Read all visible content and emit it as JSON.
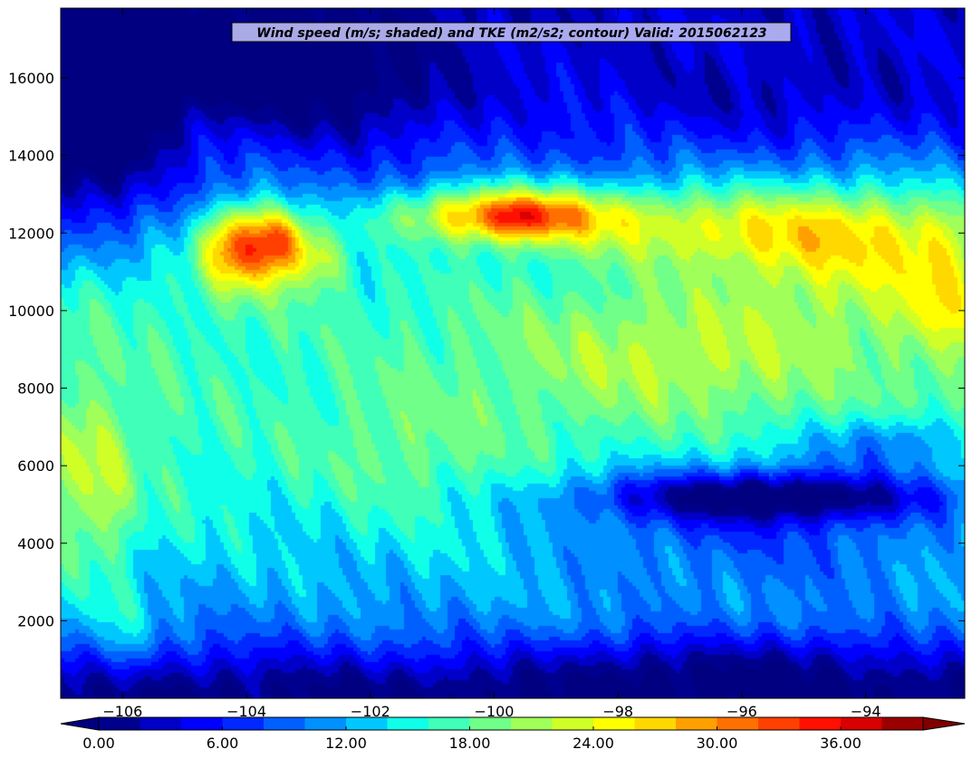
{
  "chart_data": {
    "type": "heatmap",
    "title": "Wind speed (m/s; shaded) and TKE (m2/s2; contour) Valid: 2015062123",
    "xlabel": "",
    "ylabel": "",
    "xlim": [
      -107.0,
      -92.4
    ],
    "ylim": [
      0,
      17800
    ],
    "x_ticks": [
      -106,
      -104,
      -102,
      -100,
      -98,
      -96,
      -94
    ],
    "x_tick_labels": [
      "−106",
      "−104",
      "−102",
      "−100",
      "−98",
      "−96",
      "−94"
    ],
    "y_ticks": [
      2000,
      4000,
      6000,
      8000,
      10000,
      12000,
      14000,
      16000
    ],
    "y_tick_labels": [
      "2000",
      "4000",
      "6000",
      "8000",
      "10000",
      "12000",
      "14000",
      "16000"
    ],
    "colorbar": {
      "min": 0,
      "max": 40,
      "step": 2,
      "extend": "both",
      "tick_values": [
        0,
        6,
        12,
        18,
        24,
        30,
        36
      ],
      "tick_labels": [
        "0.00",
        "6.00",
        "12.00",
        "18.00",
        "24.00",
        "30.00",
        "36.00"
      ],
      "colors": [
        "#00008f",
        "#0000c8",
        "#0000ff",
        "#0028ff",
        "#0060ff",
        "#0090ff",
        "#00c8ff",
        "#10ffe8",
        "#40ffb8",
        "#70ff88",
        "#a0ff58",
        "#d0ff28",
        "#ffff00",
        "#ffd800",
        "#ffa000",
        "#ff7000",
        "#ff4000",
        "#ff1000",
        "#d80000",
        "#9a0000"
      ],
      "under_color": "#000080",
      "over_color": "#800000"
    },
    "features": [
      {
        "x": -104.0,
        "y": 11700,
        "sx": 0.5,
        "sy": 750,
        "a": 21
      },
      {
        "x": -103.35,
        "y": 11900,
        "sx": 0.27,
        "sy": 520,
        "a": 9
      },
      {
        "x": -102.85,
        "y": 11300,
        "sx": 0.35,
        "sy": 560,
        "a": 8
      },
      {
        "x": -99.8,
        "y": 12500,
        "sx": 1.3,
        "sy": 520,
        "a": 17
      },
      {
        "x": -99.6,
        "y": 12400,
        "sx": 0.45,
        "sy": 330,
        "a": 5
      },
      {
        "x": -96.0,
        "y": 12200,
        "sx": 2.5,
        "sy": 800,
        "a": 11
      },
      {
        "x": -94.0,
        "y": 11600,
        "sx": 1.5,
        "sy": 1300,
        "a": 7
      },
      {
        "x": -92.7,
        "y": 10500,
        "sx": 0.5,
        "sy": 1300,
        "a": 6
      },
      {
        "x": -97.0,
        "y": 8900,
        "sx": 2.0,
        "sy": 1100,
        "a": 5
      },
      {
        "x": -95.5,
        "y": 5200,
        "sx": 2.0,
        "sy": 450,
        "a": -13
      },
      {
        "x": -95.6,
        "y": 4700,
        "sx": 2.7,
        "sy": 1300,
        "a": -8
      },
      {
        "x": -93.5,
        "y": 6600,
        "sx": 1.0,
        "sy": 500,
        "a": -6
      },
      {
        "x": -106.6,
        "y": 14800,
        "sx": 0.9,
        "sy": 1700,
        "a": -13
      },
      {
        "x": -104.5,
        "y": 16600,
        "sx": 2.5,
        "sy": 1200,
        "a": -7
      },
      {
        "x": -102.5,
        "y": 15200,
        "sx": 1.3,
        "sy": 900,
        "a": -4
      },
      {
        "x": -95.5,
        "y": 15500,
        "sx": 2.2,
        "sy": 900,
        "a": -3
      },
      {
        "x": -106.6,
        "y": 5300,
        "sx": 0.4,
        "sy": 2000,
        "a": 5
      },
      {
        "x": -106.1,
        "y": 5100,
        "sx": 0.2,
        "sy": 1300,
        "a": 2
      },
      {
        "x": -103.5,
        "y": 5500,
        "sx": 1.7,
        "sy": 2400,
        "a": -2
      },
      {
        "x": -101.5,
        "y": 6300,
        "sx": 1.0,
        "sy": 1200,
        "a": 2
      },
      {
        "x": -106.0,
        "y": 1500,
        "sx": 0.35,
        "sy": 900,
        "a": 4
      },
      {
        "x": -97.5,
        "y": 900,
        "sx": 1.2,
        "sy": 600,
        "a": -3
      },
      {
        "x": -95.0,
        "y": 1000,
        "sx": 1.0,
        "sy": 600,
        "a": -3
      }
    ]
  }
}
